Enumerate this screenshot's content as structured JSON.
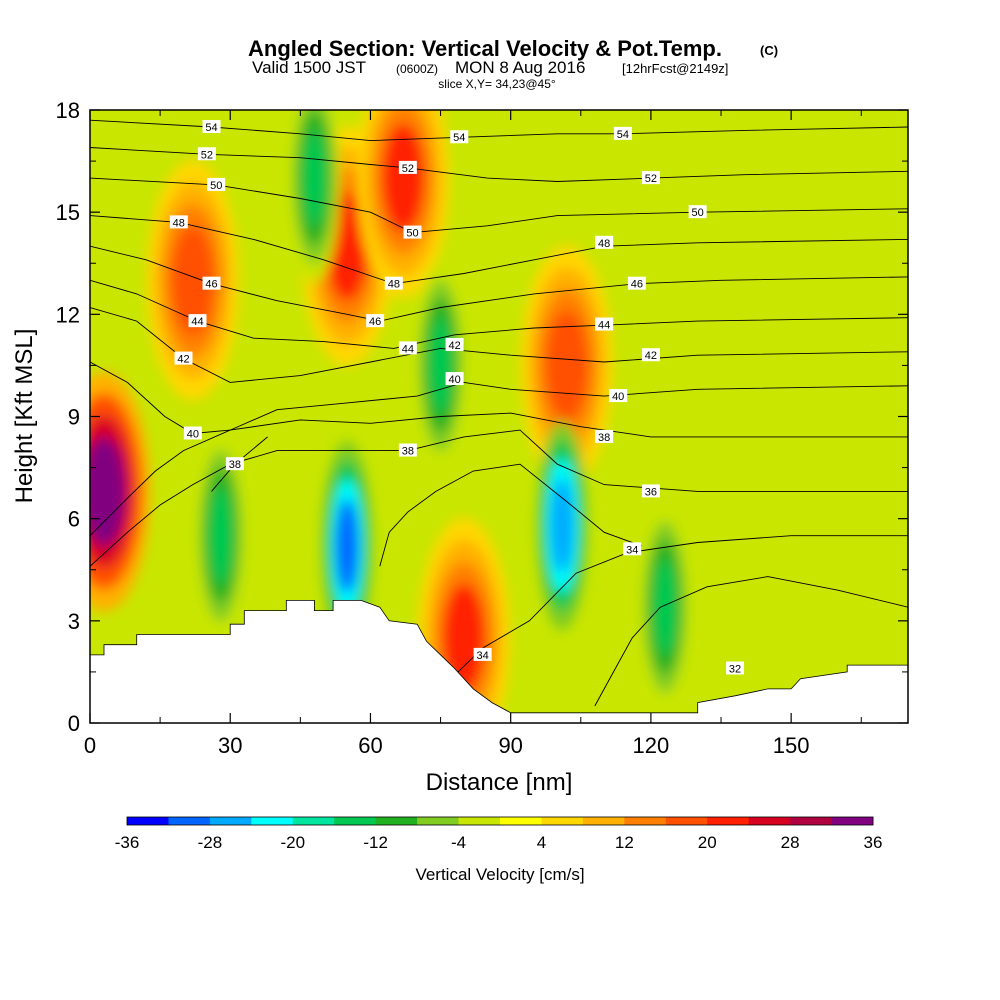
{
  "header": {
    "title": "Angled Section: Vertical Velocity & Pot.Temp.",
    "title_tag": "(C)",
    "valid_prefix": "Valid 1500 JST",
    "valid_zulu": "(0600Z)",
    "valid_date": "MON 8 Aug 2016",
    "forecast_tag": "[12hrFcst@2149z]",
    "slice": "slice X,Y= 34,23@45°"
  },
  "chart_data": {
    "type": "heatmap",
    "xlabel": "Distance [nm]",
    "ylabel": "Height [Kft MSL]",
    "xlim": [
      0,
      175
    ],
    "ylim": [
      0,
      18
    ],
    "x_ticks": [
      0,
      30,
      60,
      90,
      120,
      150
    ],
    "y_ticks": [
      0,
      3,
      6,
      9,
      12,
      15,
      18
    ],
    "colorbar": {
      "label": "Vertical Velocity [cm/s]",
      "levels": [
        -36,
        -32,
        -28,
        -24,
        -20,
        -16,
        -12,
        -8,
        -4,
        0,
        4,
        8,
        12,
        16,
        20,
        24,
        28,
        32,
        36
      ],
      "tick_labels": [
        "-36",
        "-28",
        "-20",
        "-12",
        "-4",
        "4",
        "12",
        "20",
        "28",
        "36"
      ],
      "colors": [
        "#0000ff",
        "#0066ff",
        "#00aaff",
        "#00ffff",
        "#00e6a0",
        "#00c850",
        "#20b020",
        "#80cc20",
        "#c8e600",
        "#ffff00",
        "#ffd700",
        "#ffb000",
        "#ff8000",
        "#ff5000",
        "#ff2000",
        "#d80020",
        "#b00040",
        "#800080"
      ]
    },
    "features": [
      {
        "type": "updraft",
        "x": 3,
        "y": 6.8,
        "w_cms": 36
      },
      {
        "type": "updraft",
        "x": 55,
        "y": 14,
        "w_cms": 20
      },
      {
        "type": "updraft",
        "x": 67,
        "y": 16,
        "w_cms": 20
      },
      {
        "type": "updraft",
        "x": 80,
        "y": 2.5,
        "w_cms": 20
      },
      {
        "type": "updraft",
        "x": 102,
        "y": 10.5,
        "w_cms": 16
      },
      {
        "type": "updraft",
        "x": 22,
        "y": 13,
        "w_cms": 16
      },
      {
        "type": "downdraft",
        "x": 55,
        "y": 5.2,
        "w_cms": -32
      },
      {
        "type": "downdraft",
        "x": 101,
        "y": 5.8,
        "w_cms": -28
      },
      {
        "type": "downdraft",
        "x": 48,
        "y": 16,
        "w_cms": -16
      },
      {
        "type": "downdraft",
        "x": 75,
        "y": 10.5,
        "w_cms": -16
      },
      {
        "type": "downdraft",
        "x": 123,
        "y": 3.4,
        "w_cms": -16
      },
      {
        "type": "downdraft",
        "x": 28,
        "y": 5.5,
        "w_cms": -16
      }
    ],
    "terrain_kft": [
      [
        0,
        2.0
      ],
      [
        3,
        2.0
      ],
      [
        3,
        2.3
      ],
      [
        10,
        2.3
      ],
      [
        10,
        2.6
      ],
      [
        30,
        2.6
      ],
      [
        30,
        2.9
      ],
      [
        33,
        2.9
      ],
      [
        33,
        3.3
      ],
      [
        42,
        3.3
      ],
      [
        42,
        3.6
      ],
      [
        48,
        3.6
      ],
      [
        48,
        3.3
      ],
      [
        52,
        3.3
      ],
      [
        52,
        3.6
      ],
      [
        58,
        3.6
      ],
      [
        62,
        3.4
      ],
      [
        64,
        3.0
      ],
      [
        70,
        2.9
      ],
      [
        72,
        2.4
      ],
      [
        75,
        2.0
      ],
      [
        78,
        1.6
      ],
      [
        82,
        1.0
      ],
      [
        86,
        0.6
      ],
      [
        90,
        0.3
      ],
      [
        130,
        0.3
      ],
      [
        130,
        0.6
      ],
      [
        138,
        0.8
      ],
      [
        145,
        1.0
      ],
      [
        150,
        1.0
      ],
      [
        152,
        1.3
      ],
      [
        162,
        1.5
      ],
      [
        162,
        1.7
      ],
      [
        175,
        1.7
      ]
    ],
    "isentropes": [
      {
        "theta": 32,
        "label": "32",
        "label_x": 138,
        "label_y": 1.6,
        "points": [
          [
            108,
            0.5
          ],
          [
            112,
            1.5
          ],
          [
            116,
            2.5
          ],
          [
            122,
            3.4
          ],
          [
            132,
            4.0
          ],
          [
            145,
            4.3
          ],
          [
            160,
            3.9
          ],
          [
            175,
            3.4
          ]
        ]
      },
      {
        "theta": 34,
        "label": "34",
        "label_x": 84,
        "label_y": 2.0,
        "points": [
          [
            78,
            1.4
          ],
          [
            84,
            2.2
          ],
          [
            94,
            3.0
          ],
          [
            104,
            4.4
          ],
          [
            115,
            5.0
          ],
          [
            130,
            5.3
          ],
          [
            150,
            5.5
          ],
          [
            175,
            5.5
          ]
        ]
      },
      {
        "theta": 34,
        "label": "34",
        "label_x": 116,
        "label_y": 5.1,
        "points": [
          [
            62,
            4.6
          ],
          [
            64,
            5.6
          ],
          [
            68,
            6.2
          ],
          [
            74,
            6.8
          ],
          [
            82,
            7.4
          ],
          [
            92,
            7.6
          ],
          [
            102,
            6.5
          ],
          [
            110,
            5.6
          ],
          [
            118,
            5.2
          ]
        ]
      },
      {
        "theta": 36,
        "label": "36",
        "label_x": 120,
        "label_y": 6.8,
        "points": [
          [
            0,
            4.6
          ],
          [
            8,
            5.6
          ],
          [
            15,
            6.4
          ],
          [
            22,
            7.0
          ],
          [
            30,
            7.6
          ],
          [
            40,
            8.0
          ],
          [
            55,
            8.0
          ],
          [
            68,
            8.0
          ],
          [
            80,
            8.4
          ],
          [
            92,
            8.6
          ],
          [
            100,
            7.6
          ],
          [
            110,
            7.0
          ],
          [
            130,
            6.8
          ],
          [
            175,
            6.8
          ]
        ]
      },
      {
        "theta": 38,
        "label": "38",
        "label_x": 68,
        "label_y": 8.0,
        "points": [
          [
            0,
            5.5
          ],
          [
            8,
            6.6
          ],
          [
            14,
            7.4
          ],
          [
            20,
            8.0
          ],
          [
            30,
            8.6
          ],
          [
            45,
            8.9
          ],
          [
            60,
            8.8
          ],
          [
            75,
            9.0
          ],
          [
            90,
            9.1
          ],
          [
            105,
            8.7
          ],
          [
            120,
            8.4
          ],
          [
            140,
            8.4
          ],
          [
            175,
            8.4
          ]
        ]
      },
      {
        "theta": 38,
        "label": "38",
        "label_x": 31,
        "label_y": 7.6,
        "points": [
          [
            26,
            6.8
          ],
          [
            31,
            7.6
          ],
          [
            38,
            8.4
          ]
        ]
      },
      {
        "theta": 40,
        "label": "40",
        "label_x": 22,
        "label_y": 8.5,
        "points": [
          [
            0,
            10.6
          ],
          [
            8,
            10.0
          ],
          [
            16,
            9.0
          ],
          [
            22,
            8.5
          ],
          [
            30,
            8.6
          ],
          [
            40,
            9.2
          ],
          [
            55,
            9.4
          ],
          [
            70,
            9.6
          ],
          [
            80,
            10.0
          ],
          [
            90,
            9.8
          ],
          [
            110,
            9.6
          ],
          [
            130,
            9.8
          ],
          [
            175,
            9.9
          ]
        ]
      },
      {
        "theta": 42,
        "label": "42",
        "label_x": 20,
        "label_y": 10.7,
        "points": [
          [
            0,
            12.2
          ],
          [
            10,
            11.8
          ],
          [
            20,
            10.7
          ],
          [
            30,
            10.0
          ],
          [
            45,
            10.2
          ],
          [
            60,
            10.6
          ],
          [
            75,
            11.0
          ],
          [
            90,
            10.8
          ],
          [
            110,
            10.6
          ],
          [
            130,
            10.8
          ],
          [
            175,
            10.9
          ]
        ]
      },
      {
        "theta": 44,
        "label": "44",
        "label_x": 23,
        "label_y": 11.8,
        "points": [
          [
            0,
            13.0
          ],
          [
            10,
            12.6
          ],
          [
            23,
            11.8
          ],
          [
            35,
            11.3
          ],
          [
            50,
            11.2
          ],
          [
            65,
            11.0
          ],
          [
            78,
            11.4
          ],
          [
            95,
            11.6
          ],
          [
            113,
            11.7
          ],
          [
            130,
            11.8
          ],
          [
            175,
            11.9
          ]
        ]
      },
      {
        "theta": 46,
        "label": "46",
        "label_x": 26,
        "label_y": 12.9,
        "points": [
          [
            0,
            14.0
          ],
          [
            12,
            13.6
          ],
          [
            26,
            12.9
          ],
          [
            40,
            12.4
          ],
          [
            55,
            12.0
          ],
          [
            62,
            11.8
          ],
          [
            75,
            12.2
          ],
          [
            95,
            12.6
          ],
          [
            117,
            12.9
          ],
          [
            135,
            13.0
          ],
          [
            175,
            13.1
          ]
        ]
      },
      {
        "theta": 48,
        "label": "48",
        "label_x": 19,
        "label_y": 14.7,
        "points": [
          [
            0,
            14.9
          ],
          [
            19,
            14.7
          ],
          [
            35,
            14.2
          ],
          [
            50,
            13.6
          ],
          [
            65,
            12.9
          ],
          [
            80,
            13.2
          ],
          [
            95,
            13.6
          ],
          [
            110,
            14.0
          ],
          [
            130,
            14.1
          ],
          [
            175,
            14.2
          ]
        ]
      },
      {
        "theta": 50,
        "label": "50",
        "label_x": 27,
        "label_y": 15.8,
        "points": [
          [
            0,
            16.0
          ],
          [
            27,
            15.8
          ],
          [
            45,
            15.4
          ],
          [
            60,
            15.0
          ],
          [
            69,
            14.4
          ],
          [
            85,
            14.6
          ],
          [
            100,
            14.9
          ],
          [
            130,
            15.0
          ],
          [
            175,
            15.1
          ]
        ]
      },
      {
        "theta": 52,
        "label": "52",
        "label_x": 25,
        "label_y": 16.7,
        "points": [
          [
            0,
            16.9
          ],
          [
            25,
            16.7
          ],
          [
            45,
            16.6
          ],
          [
            60,
            16.4
          ],
          [
            68,
            16.3
          ],
          [
            85,
            16.0
          ],
          [
            100,
            15.9
          ],
          [
            120,
            16.0
          ],
          [
            140,
            16.1
          ],
          [
            175,
            16.2
          ]
        ]
      },
      {
        "theta": 54,
        "label": "54",
        "label_x": 26,
        "label_y": 17.5,
        "points": [
          [
            0,
            17.7
          ],
          [
            26,
            17.5
          ],
          [
            45,
            17.3
          ],
          [
            60,
            17.1
          ],
          [
            80,
            17.2
          ],
          [
            100,
            17.3
          ],
          [
            114,
            17.3
          ],
          [
            140,
            17.4
          ],
          [
            175,
            17.5
          ]
        ]
      }
    ],
    "extra_labels": [
      {
        "label": "54",
        "x": 79,
        "y": 17.2
      },
      {
        "label": "52",
        "x": 68,
        "y": 16.3
      },
      {
        "label": "50",
        "x": 69,
        "y": 14.4
      },
      {
        "label": "48",
        "x": 65,
        "y": 12.9
      },
      {
        "label": "46",
        "x": 61,
        "y": 11.8
      },
      {
        "label": "44",
        "x": 68,
        "y": 11.0
      },
      {
        "label": "42",
        "x": 78,
        "y": 11.1
      },
      {
        "label": "40",
        "x": 78,
        "y": 10.1
      },
      {
        "label": "52",
        "x": 120,
        "y": 16.0
      },
      {
        "label": "50",
        "x": 130,
        "y": 15.0
      },
      {
        "label": "48",
        "x": 110,
        "y": 14.1
      },
      {
        "label": "46",
        "x": 117,
        "y": 12.9
      },
      {
        "label": "44",
        "x": 110,
        "y": 11.7
      },
      {
        "label": "42",
        "x": 120,
        "y": 10.8
      },
      {
        "label": "40",
        "x": 113,
        "y": 9.6
      },
      {
        "label": "38",
        "x": 110,
        "y": 8.4
      },
      {
        "label": "54",
        "x": 114,
        "y": 17.3
      }
    ]
  }
}
